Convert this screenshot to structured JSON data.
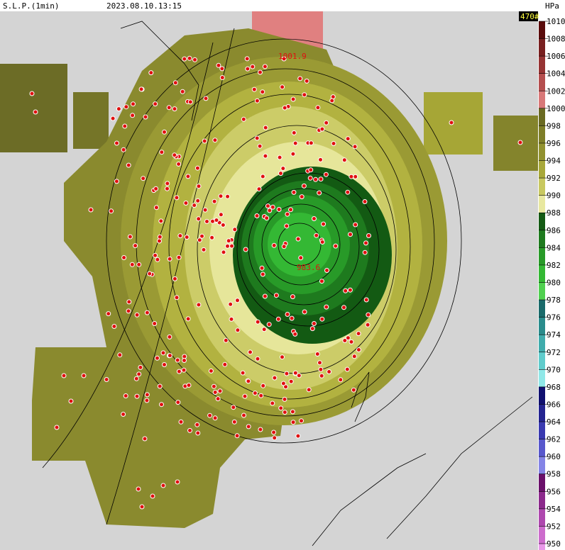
{
  "header": {
    "title": "S.L.P.(1min)",
    "datetime": "2023.08.10.13:15",
    "station_count": "470#"
  },
  "colorbar": {
    "unit": "HPa",
    "ticks": [
      1010,
      1008,
      1006,
      1004,
      1002,
      1000,
      998,
      996,
      994,
      992,
      990,
      988,
      986,
      984,
      982,
      980,
      978,
      976,
      974,
      972,
      970,
      968,
      966,
      964,
      962,
      960,
      958,
      956,
      954,
      952,
      950
    ],
    "colors": [
      "#5a0c0c",
      "#782020",
      "#963434",
      "#b44e4e",
      "#d87878",
      "#6a6a22",
      "#7e7e28",
      "#929230",
      "#a8a83a",
      "#c8c860",
      "#e8e8a0",
      "#145a14",
      "#1e7a1e",
      "#289a28",
      "#34b834",
      "#50d050",
      "#1a6a6a",
      "#2a8c8c",
      "#40acac",
      "#60cccc",
      "#90e8e8",
      "#101070",
      "#242490",
      "#3a3ab0",
      "#5858cc",
      "#8484e6",
      "#6a106a",
      "#8c2a8c",
      "#ae48ae",
      "#cc6ccc",
      "#e898e8"
    ]
  },
  "annotations": [
    {
      "label": "1001.9"
    },
    {
      "label": "983.6"
    }
  ]
}
